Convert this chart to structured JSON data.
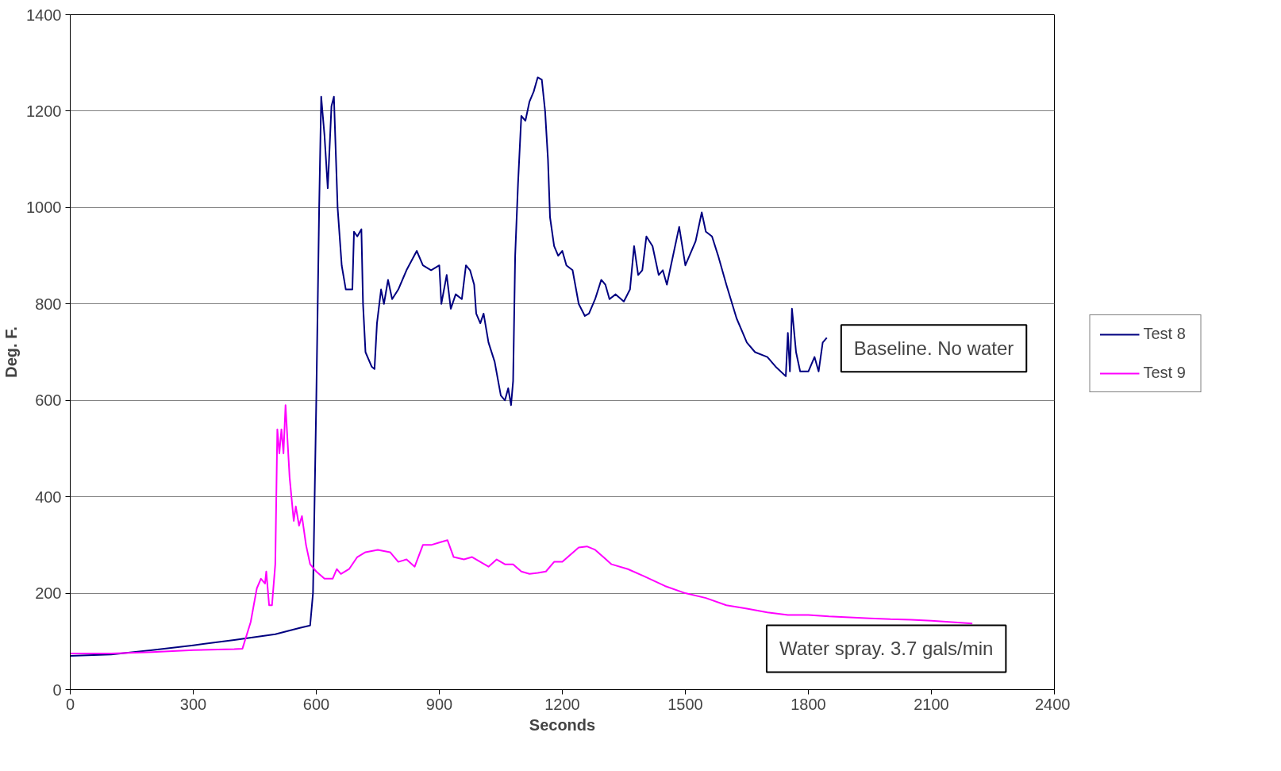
{
  "chart_data": {
    "type": "line",
    "xlabel": "Seconds",
    "ylabel": "Deg. F.",
    "xlim": [
      0,
      2400
    ],
    "xticks": [
      0,
      300,
      600,
      900,
      1200,
      1500,
      1800,
      2100,
      2400
    ],
    "ylim": [
      0,
      1400
    ],
    "yticks": [
      0,
      200,
      400,
      600,
      800,
      1000,
      1200,
      1400
    ],
    "grid": "y",
    "legend": "right",
    "marker": "none",
    "line_style": "solid",
    "annotations": [
      "Baseline. No water",
      "Water spray. 3.7 gals/min"
    ],
    "series": [
      {
        "name": "Test 8",
        "color": "#000080",
        "x": [
          0,
          100,
          200,
          300,
          400,
          500,
          560,
          585,
          592,
          600,
          607,
          612,
          620,
          628,
          637,
          643,
          652,
          662,
          672,
          688,
          692,
          700,
          710,
          714,
          720,
          735,
          742,
          748,
          758,
          765,
          775,
          785,
          800,
          820,
          845,
          860,
          880,
          900,
          905,
          918,
          928,
          940,
          955,
          965,
          975,
          985,
          990,
          1000,
          1008,
          1020,
          1035,
          1050,
          1060,
          1068,
          1075,
          1080,
          1085,
          1092,
          1100,
          1110,
          1120,
          1130,
          1140,
          1150,
          1158,
          1165,
          1170,
          1180,
          1190,
          1200,
          1210,
          1225,
          1240,
          1255,
          1265,
          1280,
          1295,
          1305,
          1315,
          1330,
          1350,
          1365,
          1375,
          1385,
          1395,
          1405,
          1420,
          1435,
          1445,
          1455,
          1470,
          1485,
          1500,
          1510,
          1525,
          1540,
          1550,
          1565,
          1580,
          1600,
          1625,
          1640,
          1650,
          1670,
          1700,
          1720,
          1745,
          1750,
          1755,
          1760,
          1770,
          1780,
          1800,
          1815,
          1825,
          1835,
          1845
        ],
        "values": [
          70,
          73,
          82,
          92,
          103,
          115,
          128,
          133,
          200,
          600,
          1000,
          1230,
          1150,
          1040,
          1210,
          1230,
          1000,
          880,
          830,
          830,
          950,
          940,
          955,
          800,
          700,
          670,
          665,
          760,
          830,
          800,
          850,
          810,
          830,
          870,
          910,
          880,
          870,
          880,
          800,
          860,
          790,
          820,
          810,
          880,
          870,
          840,
          780,
          760,
          780,
          720,
          680,
          610,
          600,
          625,
          590,
          640,
          900,
          1050,
          1190,
          1180,
          1220,
          1240,
          1270,
          1265,
          1200,
          1100,
          980,
          920,
          900,
          910,
          880,
          870,
          800,
          775,
          780,
          810,
          850,
          840,
          810,
          820,
          805,
          830,
          920,
          860,
          870,
          940,
          920,
          860,
          870,
          840,
          900,
          960,
          880,
          900,
          930,
          990,
          950,
          940,
          900,
          840,
          770,
          740,
          720,
          700,
          690,
          670,
          650,
          740,
          660,
          790,
          700,
          660,
          660,
          690,
          660,
          720,
          730
        ]
      },
      {
        "name": "Test 9",
        "color": "#ff00ff",
        "x": [
          0,
          100,
          200,
          300,
          400,
          420,
          440,
          455,
          465,
          475,
          478,
          485,
          492,
          500,
          505,
          510,
          515,
          520,
          525,
          535,
          545,
          550,
          558,
          565,
          575,
          585,
          600,
          620,
          640,
          650,
          660,
          680,
          700,
          720,
          750,
          780,
          800,
          820,
          840,
          860,
          880,
          900,
          920,
          935,
          960,
          980,
          1000,
          1020,
          1040,
          1060,
          1080,
          1100,
          1120,
          1140,
          1160,
          1180,
          1200,
          1220,
          1240,
          1260,
          1280,
          1300,
          1320,
          1360,
          1400,
          1450,
          1500,
          1550,
          1600,
          1650,
          1700,
          1750,
          1800,
          1850,
          1900,
          1950,
          2000,
          2050,
          2100,
          2150,
          2200
        ],
        "values": [
          75,
          75,
          78,
          82,
          84,
          85,
          140,
          210,
          230,
          220,
          245,
          175,
          175,
          260,
          540,
          490,
          540,
          490,
          590,
          440,
          350,
          380,
          340,
          360,
          300,
          260,
          245,
          230,
          230,
          250,
          240,
          250,
          275,
          285,
          290,
          285,
          265,
          270,
          255,
          300,
          300,
          305,
          310,
          275,
          270,
          275,
          265,
          255,
          270,
          260,
          260,
          245,
          240,
          242,
          245,
          265,
          265,
          280,
          295,
          297,
          290,
          275,
          260,
          250,
          235,
          215,
          200,
          190,
          175,
          168,
          160,
          155,
          155,
          152,
          150,
          148,
          146,
          145,
          143,
          140,
          137
        ]
      }
    ]
  }
}
